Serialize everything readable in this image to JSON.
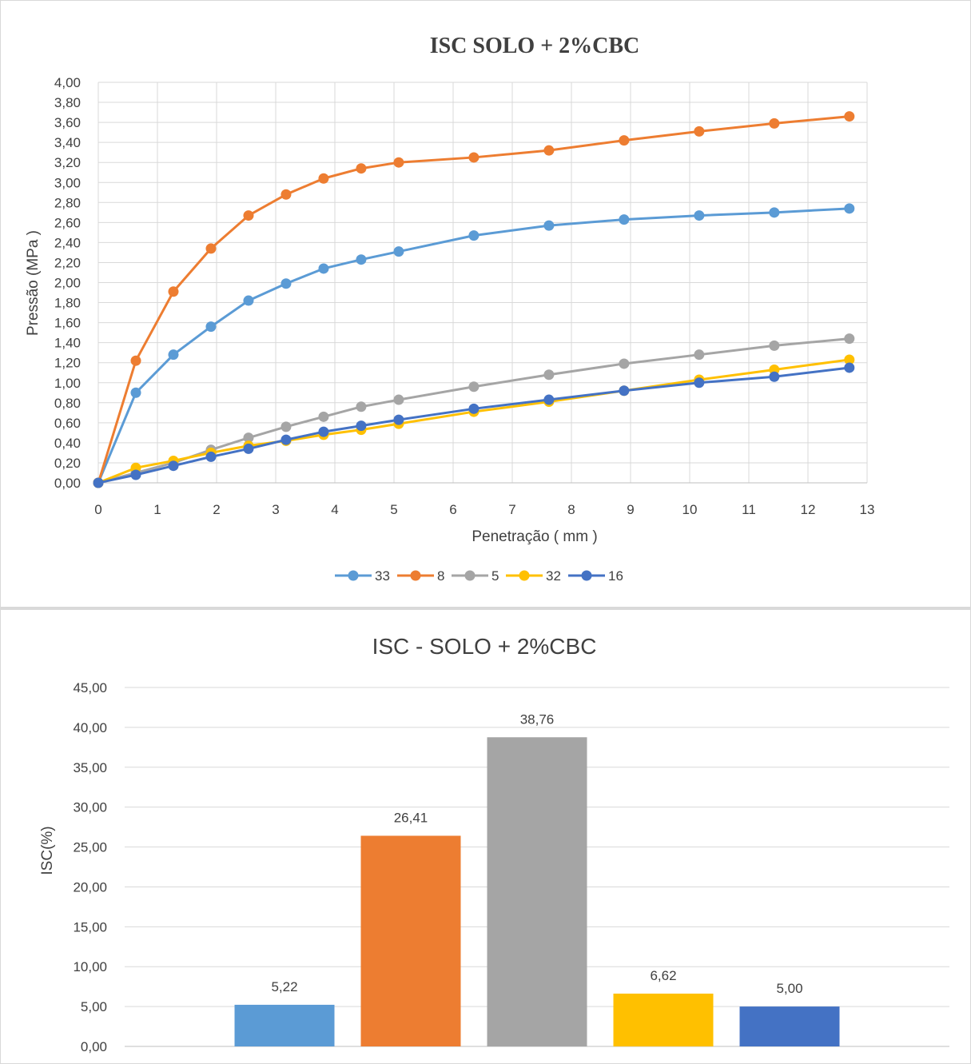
{
  "chart_data": [
    {
      "type": "line",
      "title": "ISC SOLO + 2%CBC",
      "xlabel": "Penetração ( mm )",
      "ylabel": "Pressão (MPa )",
      "xlim": [
        0,
        13
      ],
      "ylim": [
        0,
        4
      ],
      "x_ticks": [
        "0",
        "1",
        "2",
        "3",
        "4",
        "5",
        "6",
        "7",
        "8",
        "9",
        "10",
        "11",
        "12",
        "13"
      ],
      "y_ticks": [
        "0,00",
        "0,20",
        "0,40",
        "0,60",
        "0,80",
        "1,00",
        "1,20",
        "1,40",
        "1,60",
        "1,80",
        "2,00",
        "2,20",
        "2,40",
        "2,60",
        "2,80",
        "3,00",
        "3,20",
        "3,40",
        "3,60",
        "3,80",
        "4,00"
      ],
      "grid": true,
      "legend_position": "bottom",
      "x": [
        0,
        0.635,
        1.27,
        1.905,
        2.54,
        3.175,
        3.81,
        4.445,
        5.08,
        6.35,
        7.62,
        8.89,
        10.16,
        11.43,
        12.7
      ],
      "series": [
        {
          "name": "33",
          "color": "#5b9bd5",
          "values": [
            0,
            0.9,
            1.28,
            1.56,
            1.82,
            1.99,
            2.14,
            2.23,
            2.31,
            2.47,
            2.57,
            2.63,
            2.67,
            2.7,
            2.74
          ]
        },
        {
          "name": "8",
          "color": "#ed7d31",
          "values": [
            0,
            1.22,
            1.91,
            2.34,
            2.67,
            2.88,
            3.04,
            3.14,
            3.2,
            3.25,
            3.32,
            3.42,
            3.51,
            3.59,
            3.66
          ]
        },
        {
          "name": "5",
          "color": "#a5a5a5",
          "values": [
            0,
            0.1,
            0.2,
            0.33,
            0.45,
            0.56,
            0.66,
            0.76,
            0.83,
            0.96,
            1.08,
            1.19,
            1.28,
            1.37,
            1.44
          ]
        },
        {
          "name": "32",
          "color": "#ffc000",
          "values": [
            0,
            0.15,
            0.22,
            0.3,
            0.37,
            0.42,
            0.48,
            0.53,
            0.59,
            0.71,
            0.81,
            0.92,
            1.03,
            1.13,
            1.23
          ]
        },
        {
          "name": "16",
          "color": "#4472c4",
          "values": [
            0,
            0.08,
            0.17,
            0.26,
            0.34,
            0.43,
            0.51,
            0.57,
            0.63,
            0.74,
            0.83,
            0.92,
            1.0,
            1.06,
            1.15
          ]
        }
      ]
    },
    {
      "type": "bar",
      "title": "ISC - SOLO + 2%CBC",
      "xlabel": "",
      "ylabel": "ISC(%)",
      "ylim": [
        0,
        45
      ],
      "y_ticks": [
        "0,00",
        "5,00",
        "10,00",
        "15,00",
        "20,00",
        "25,00",
        "30,00",
        "35,00",
        "40,00",
        "45,00"
      ],
      "grid": true,
      "values": [
        5.22,
        26.41,
        38.76,
        6.62,
        5.0
      ],
      "data_labels": [
        "5,22",
        "26,41",
        "38,76",
        "6,62",
        "5,00"
      ],
      "colors": [
        "#5b9bd5",
        "#ed7d31",
        "#a5a5a5",
        "#ffc000",
        "#4472c4"
      ]
    }
  ]
}
